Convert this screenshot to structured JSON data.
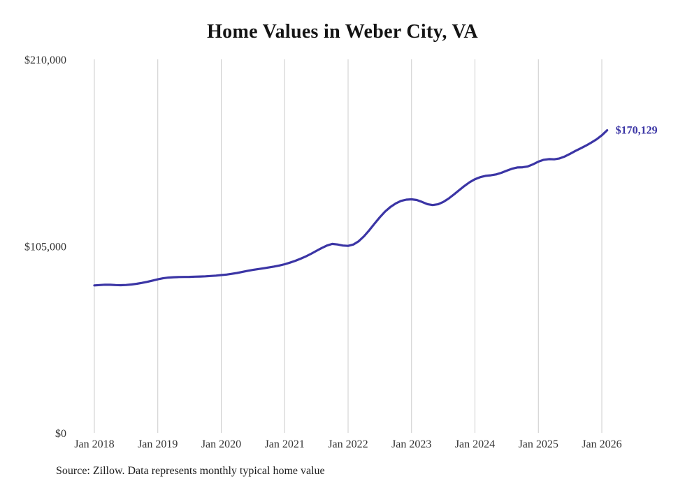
{
  "chart": {
    "title": "Home Values in Weber City, VA",
    "source": "Source: Zillow. Data represents monthly typical home value",
    "end_label": "$170,129",
    "line_color": "#3b35a5",
    "grid_color": "#cccccc",
    "tick_color": "#333333"
  },
  "chart_data": {
    "type": "line",
    "title": "Home Values in Weber City, VA",
    "series_name": "Monthly typical home value",
    "x_start": "2018-01",
    "x_end": "2026-02",
    "x_tick_labels": [
      "Jan 2018",
      "Jan 2019",
      "Jan 2020",
      "Jan 2021",
      "Jan 2022",
      "Jan 2023",
      "Jan 2024",
      "Jan 2025",
      "Jan 2026"
    ],
    "y_tick_labels": [
      "$0",
      "$105,000",
      "$210,000"
    ],
    "y_tick_values": [
      0,
      105000,
      210000
    ],
    "ylim": [
      0,
      210000
    ],
    "grid": "vertical-only",
    "legend": "none",
    "end_value": 170129,
    "monthly_values": [
      82900,
      83100,
      83300,
      83250,
      83100,
      83000,
      83150,
      83400,
      83800,
      84300,
      84900,
      85600,
      86300,
      86900,
      87300,
      87500,
      87600,
      87650,
      87700,
      87800,
      87900,
      88000,
      88200,
      88400,
      88700,
      89000,
      89400,
      89900,
      90500,
      91100,
      91600,
      92100,
      92500,
      93000,
      93500,
      94100,
      94800,
      95700,
      96700,
      97900,
      99200,
      100700,
      102300,
      103900,
      105300,
      106200,
      105900,
      105300,
      105100,
      105900,
      107700,
      110500,
      113900,
      117600,
      121200,
      124400,
      127000,
      129000,
      130400,
      131100,
      131300,
      130900,
      129800,
      128600,
      128100,
      128500,
      129800,
      131700,
      134000,
      136400,
      138800,
      140900,
      142600,
      143800,
      144500,
      144800,
      145300,
      146200,
      147400,
      148500,
      149200,
      149300,
      149800,
      151000,
      152500,
      153500,
      153900,
      153800,
      154300,
      155400,
      156900,
      158500,
      160000,
      161500,
      163200,
      165000,
      167300,
      170129
    ]
  }
}
